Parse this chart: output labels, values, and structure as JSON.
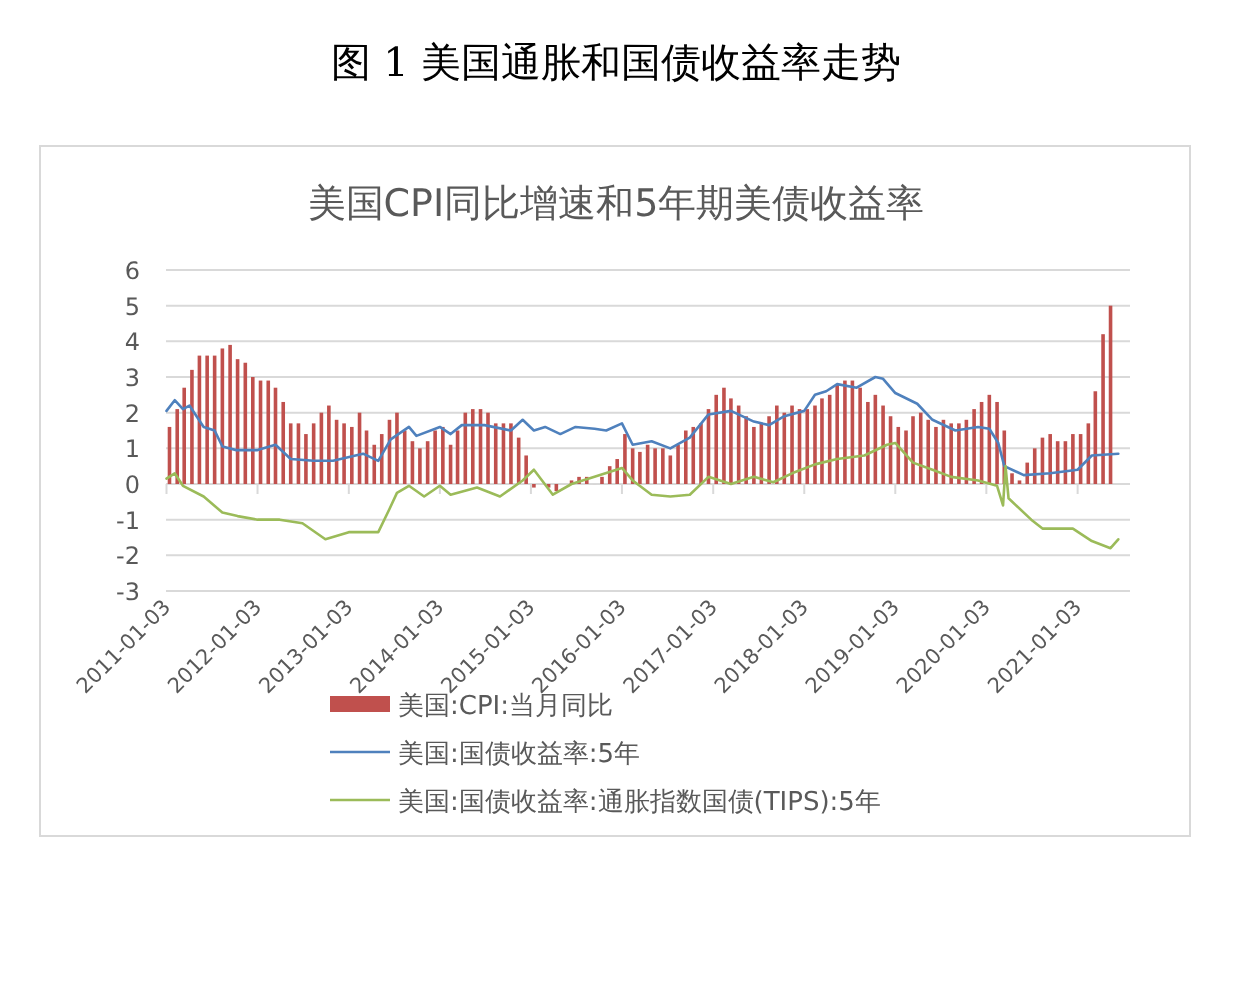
{
  "chart_data": {
    "type": "bar",
    "title": "图 1  美国通胀和国债收益率走势",
    "subtitle": "美国CPI同比增速和5年期美债收益率",
    "xlim": [
      "2011-01-01",
      "2021-08-01"
    ],
    "xticks": [
      "2011-01-03",
      "2012-01-03",
      "2013-01-03",
      "2014-01-03",
      "2015-01-03",
      "2016-01-03",
      "2017-01-03",
      "2018-01-03",
      "2019-01-03",
      "2020-01-03",
      "2021-01-03"
    ],
    "ylim": [
      -3,
      6
    ],
    "yticks": [
      -3,
      -2,
      -1,
      0,
      1,
      2,
      3,
      4,
      5,
      6
    ],
    "grid": "y",
    "legend": "bottom",
    "series": [
      {
        "name": "美国:CPI:当月同比",
        "color": "#c0504d",
        "x": [
          "2011-01",
          "2011-02",
          "2011-03",
          "2011-04",
          "2011-05",
          "2011-06",
          "2011-07",
          "2011-08",
          "2011-09",
          "2011-10",
          "2011-11",
          "2011-12",
          "2012-01",
          "2012-02",
          "2012-03",
          "2012-04",
          "2012-05",
          "2012-06",
          "2012-07",
          "2012-08",
          "2012-09",
          "2012-10",
          "2012-11",
          "2012-12",
          "2013-01",
          "2013-02",
          "2013-03",
          "2013-04",
          "2013-05",
          "2013-06",
          "2013-07",
          "2013-08",
          "2013-09",
          "2013-10",
          "2013-11",
          "2013-12",
          "2014-01",
          "2014-02",
          "2014-03",
          "2014-04",
          "2014-05",
          "2014-06",
          "2014-07",
          "2014-08",
          "2014-09",
          "2014-10",
          "2014-11",
          "2014-12",
          "2015-01",
          "2015-02",
          "2015-03",
          "2015-04",
          "2015-05",
          "2015-06",
          "2015-07",
          "2015-08",
          "2015-09",
          "2015-10",
          "2015-11",
          "2015-12",
          "2016-01",
          "2016-02",
          "2016-03",
          "2016-04",
          "2016-05",
          "2016-06",
          "2016-07",
          "2016-08",
          "2016-09",
          "2016-10",
          "2016-11",
          "2016-12",
          "2017-01",
          "2017-02",
          "2017-03",
          "2017-04",
          "2017-05",
          "2017-06",
          "2017-07",
          "2017-08",
          "2017-09",
          "2017-10",
          "2017-11",
          "2017-12",
          "2018-01",
          "2018-02",
          "2018-03",
          "2018-04",
          "2018-05",
          "2018-06",
          "2018-07",
          "2018-08",
          "2018-09",
          "2018-10",
          "2018-11",
          "2018-12",
          "2019-01",
          "2019-02",
          "2019-03",
          "2019-04",
          "2019-05",
          "2019-06",
          "2019-07",
          "2019-08",
          "2019-09",
          "2019-10",
          "2019-11",
          "2019-12",
          "2020-01",
          "2020-02",
          "2020-03",
          "2020-04",
          "2020-05",
          "2020-06",
          "2020-07",
          "2020-08",
          "2020-09",
          "2020-10",
          "2020-11",
          "2020-12",
          "2021-01",
          "2021-02",
          "2021-03",
          "2021-04",
          "2021-05"
        ],
        "values": [
          1.6,
          2.1,
          2.7,
          3.2,
          3.6,
          3.6,
          3.6,
          3.8,
          3.9,
          3.5,
          3.4,
          3.0,
          2.9,
          2.9,
          2.7,
          2.3,
          1.7,
          1.7,
          1.4,
          1.7,
          2.0,
          2.2,
          1.8,
          1.7,
          1.6,
          2.0,
          1.5,
          1.1,
          1.4,
          1.8,
          2.0,
          1.5,
          1.2,
          1.0,
          1.2,
          1.5,
          1.6,
          1.1,
          1.5,
          2.0,
          2.1,
          2.1,
          2.0,
          1.7,
          1.7,
          1.7,
          1.3,
          0.8,
          -0.1,
          0.0,
          -0.1,
          -0.2,
          0.0,
          0.1,
          0.2,
          0.2,
          0.0,
          0.2,
          0.5,
          0.7,
          1.4,
          1.0,
          0.9,
          1.1,
          1.0,
          1.0,
          0.8,
          1.1,
          1.5,
          1.6,
          1.7,
          2.1,
          2.5,
          2.7,
          2.4,
          2.2,
          1.9,
          1.6,
          1.7,
          1.9,
          2.2,
          2.0,
          2.2,
          2.1,
          2.1,
          2.2,
          2.4,
          2.5,
          2.8,
          2.9,
          2.9,
          2.7,
          2.3,
          2.5,
          2.2,
          1.9,
          1.6,
          1.5,
          1.9,
          2.0,
          1.8,
          1.6,
          1.8,
          1.7,
          1.7,
          1.8,
          2.1,
          2.3,
          2.5,
          2.3,
          1.5,
          0.3,
          0.1,
          0.6,
          1.0,
          1.3,
          1.4,
          1.2,
          1.2,
          1.4,
          1.4,
          1.7,
          2.6,
          4.2,
          5.0
        ]
      },
      {
        "name": "美国:国债收益率:5年",
        "type": "line",
        "color": "#4f81bd",
        "x": [
          "2011-01-03",
          "2011-02-05",
          "2011-03-10",
          "2011-04-05",
          "2011-06-01",
          "2011-07-15",
          "2011-08-15",
          "2011-10-10",
          "2012-01-03",
          "2012-03-15",
          "2012-05-15",
          "2012-08-15",
          "2012-11-01",
          "2013-03-01",
          "2013-05-01",
          "2013-06-20",
          "2013-09-01",
          "2013-10-01",
          "2014-01-03",
          "2014-02-15",
          "2014-04-01",
          "2014-07-01",
          "2014-10-15",
          "2014-12-01",
          "2015-01-15",
          "2015-03-01",
          "2015-05-01",
          "2015-07-01",
          "2015-09-15",
          "2015-11-01",
          "2016-01-03",
          "2016-02-15",
          "2016-05-01",
          "2016-07-15",
          "2016-10-01",
          "2016-12-15",
          "2017-03-15",
          "2017-06-15",
          "2017-08-15",
          "2017-10-15",
          "2018-01-03",
          "2018-02-15",
          "2018-04-01",
          "2018-05-15",
          "2018-08-01",
          "2018-10-15",
          "2018-11-15",
          "2019-01-03",
          "2019-04-01",
          "2019-06-01",
          "2019-09-01",
          "2019-12-01",
          "2020-01-15",
          "2020-02-20",
          "2020-03-15",
          "2020-06-01",
          "2020-09-15",
          "2021-01-03",
          "2021-03-01",
          "2021-06-15"
        ],
        "values": [
          2.05,
          2.35,
          2.1,
          2.2,
          1.6,
          1.5,
          1.05,
          0.95,
          0.95,
          1.1,
          0.7,
          0.65,
          0.65,
          0.85,
          0.65,
          1.25,
          1.6,
          1.35,
          1.6,
          1.4,
          1.65,
          1.65,
          1.5,
          1.8,
          1.5,
          1.6,
          1.4,
          1.6,
          1.55,
          1.5,
          1.7,
          1.1,
          1.2,
          1.0,
          1.3,
          1.95,
          2.05,
          1.75,
          1.65,
          1.9,
          2.05,
          2.5,
          2.6,
          2.8,
          2.7,
          3.0,
          2.95,
          2.55,
          2.25,
          1.8,
          1.5,
          1.6,
          1.55,
          1.15,
          0.5,
          0.25,
          0.3,
          0.4,
          0.8,
          0.85
        ]
      },
      {
        "name": "美国:国债收益率:通胀指数国债(TIPS):5年",
        "type": "line",
        "color": "#9bbb59",
        "x": [
          "2011-01-03",
          "2011-02-05",
          "2011-03-10",
          "2011-06-01",
          "2011-08-15",
          "2011-10-15",
          "2012-01-03",
          "2012-04-01",
          "2012-07-01",
          "2012-10-01",
          "2013-01-03",
          "2013-05-01",
          "2013-06-15",
          "2013-07-15",
          "2013-09-01",
          "2013-11-01",
          "2014-01-03",
          "2014-02-15",
          "2014-06-01",
          "2014-09-01",
          "2014-12-01",
          "2015-01-15",
          "2015-04-01",
          "2015-06-15",
          "2015-09-15",
          "2016-01-03",
          "2016-02-15",
          "2016-05-01",
          "2016-07-15",
          "2016-10-01",
          "2016-12-15",
          "2017-03-15",
          "2017-06-15",
          "2017-09-01",
          "2017-11-15",
          "2018-02-15",
          "2018-05-15",
          "2018-09-01",
          "2018-12-01",
          "2019-01-03",
          "2019-03-15",
          "2019-06-01",
          "2019-08-15",
          "2019-12-01",
          "2020-02-15",
          "2020-03-10",
          "2020-03-20",
          "2020-04-01",
          "2020-07-01",
          "2020-08-15",
          "2020-12-15",
          "2021-03-01",
          "2021-05-15",
          "2021-06-15"
        ],
        "values": [
          0.15,
          0.3,
          -0.05,
          -0.35,
          -0.8,
          -0.9,
          -1.0,
          -1.0,
          -1.1,
          -1.55,
          -1.35,
          -1.35,
          -0.7,
          -0.25,
          -0.05,
          -0.35,
          -0.05,
          -0.3,
          -0.1,
          -0.35,
          0.1,
          0.4,
          -0.3,
          0.0,
          0.2,
          0.45,
          0.1,
          -0.3,
          -0.35,
          -0.3,
          0.2,
          0.0,
          0.2,
          0.05,
          0.3,
          0.55,
          0.7,
          0.8,
          1.1,
          1.15,
          0.6,
          0.4,
          0.2,
          0.1,
          -0.05,
          -0.6,
          0.5,
          -0.4,
          -1.0,
          -1.25,
          -1.25,
          -1.6,
          -1.8,
          -1.55
        ]
      }
    ]
  }
}
